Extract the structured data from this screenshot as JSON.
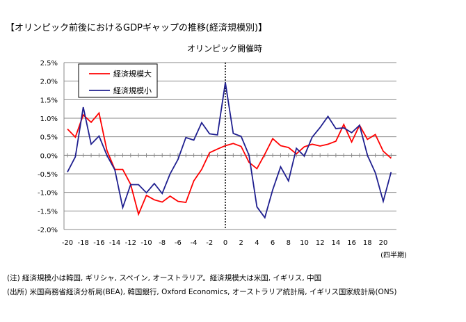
{
  "header": {
    "title": "【オリンピック前後におけるGDPギャップの推移(経済規模別)】"
  },
  "notes": [
    "(注) 経済規模小は韓国, ギリシャ, スペイン, オーストラリア。経済規模大は米国, イギリス, 中国",
    "(出所) 米国商務省経済分析局(BEA), 韓国銀行, Oxford Economics, オーストラリア統計局, イギリス国家統計局(ONS)"
  ],
  "chart_data": {
    "type": "line",
    "title": "オリンピック開催時",
    "xlabel": "(四半期)",
    "ylabel": "",
    "ylim": [
      -2.0,
      2.5
    ],
    "yticks": [
      2.5,
      2.0,
      1.5,
      1.0,
      0.5,
      0.0,
      -0.5,
      -1.0,
      -1.5,
      -2.0
    ],
    "ytick_labels": [
      "2.5%",
      "2.0%",
      "1.5%",
      "1.0%",
      "0.5%",
      "0.0%",
      "-0.5%",
      "-1.0%",
      "-1.5%",
      "-2.0%"
    ],
    "xtick_labels": [
      "-20",
      "-18",
      "-16",
      "-14",
      "-12",
      "-10",
      "-8",
      "-6",
      "-4",
      "-2",
      "0",
      "2",
      "4",
      "6",
      "8",
      "10",
      "12",
      "14",
      "16",
      "18",
      "20"
    ],
    "x": [
      -20,
      -19,
      -18,
      -17,
      -16,
      -15,
      -14,
      -13,
      -12,
      -11,
      -10,
      -9,
      -8,
      -7,
      -6,
      -5,
      -4,
      -3,
      -2,
      -1,
      0,
      1,
      2,
      3,
      4,
      5,
      6,
      7,
      8,
      9,
      10,
      11,
      12,
      13,
      14,
      15,
      16,
      17,
      18,
      19,
      20,
      21
    ],
    "marker_x": 0,
    "legend_placement": "top-left",
    "grid": true,
    "series": [
      {
        "name": "経済規模大",
        "color": "#ff0000",
        "values": [
          0.71,
          0.49,
          1.09,
          0.89,
          1.14,
          0.13,
          -0.38,
          -0.38,
          -0.78,
          -1.59,
          -1.08,
          -1.2,
          -1.26,
          -1.1,
          -1.24,
          -1.27,
          -0.69,
          -0.38,
          0.07,
          0.17,
          0.26,
          0.32,
          0.24,
          -0.19,
          -0.36,
          0.03,
          0.45,
          0.26,
          0.21,
          0.04,
          0.23,
          0.3,
          0.25,
          0.3,
          0.38,
          0.83,
          0.36,
          0.81,
          0.43,
          0.56,
          0.11,
          -0.08
        ]
      },
      {
        "name": "経済規模小",
        "color": "#1f1f8f",
        "values": [
          -0.45,
          -0.04,
          1.3,
          0.3,
          0.52,
          0.0,
          -0.39,
          -1.41,
          -0.79,
          -0.79,
          -1.01,
          -0.76,
          -1.03,
          -0.5,
          -0.11,
          0.48,
          0.41,
          0.88,
          0.58,
          0.55,
          1.96,
          0.59,
          0.51,
          0.0,
          -1.39,
          -1.68,
          -0.93,
          -0.31,
          -0.69,
          0.19,
          -0.02,
          0.49,
          0.75,
          1.05,
          0.72,
          0.74,
          0.61,
          0.81,
          0.0,
          -0.47,
          -1.24,
          -0.45
        ]
      }
    ]
  }
}
